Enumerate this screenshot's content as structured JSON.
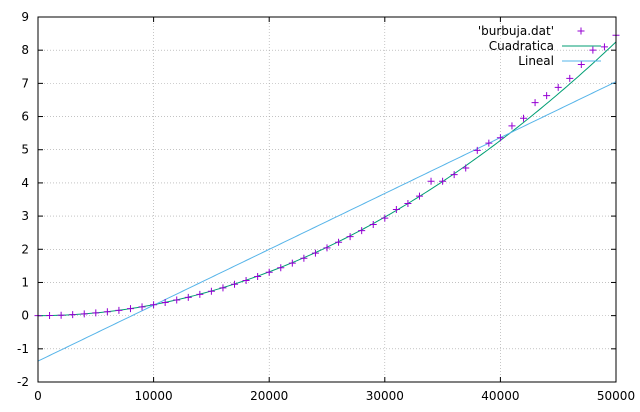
{
  "chart_data": {
    "type": "line",
    "title": "",
    "xlabel": "",
    "ylabel": "",
    "xlim": [
      0,
      50000
    ],
    "ylim": [
      -2,
      9
    ],
    "xticks": [
      0,
      10000,
      20000,
      30000,
      40000,
      50000
    ],
    "yticks": [
      -2,
      -1,
      0,
      1,
      2,
      3,
      4,
      5,
      6,
      7,
      8,
      9
    ],
    "grid": true,
    "legend_position": "top-right",
    "series": [
      {
        "name": "'burbuja.dat'",
        "style": "points",
        "marker": "plus",
        "color": "#9400d3",
        "points": [
          [
            0,
            0.0
          ],
          [
            1000,
            0.003
          ],
          [
            2000,
            0.013
          ],
          [
            3000,
            0.03
          ],
          [
            4000,
            0.052
          ],
          [
            5000,
            0.082
          ],
          [
            6000,
            0.118
          ],
          [
            7000,
            0.16
          ],
          [
            8000,
            0.21
          ],
          [
            9000,
            0.265
          ],
          [
            10000,
            0.327
          ],
          [
            11000,
            0.395
          ],
          [
            12000,
            0.47
          ],
          [
            13000,
            0.552
          ],
          [
            14000,
            0.64
          ],
          [
            15000,
            0.735
          ],
          [
            16000,
            0.837
          ],
          [
            17000,
            0.945
          ],
          [
            18000,
            1.06
          ],
          [
            19000,
            1.18
          ],
          [
            20000,
            1.308
          ],
          [
            21000,
            1.442
          ],
          [
            22000,
            1.583
          ],
          [
            23000,
            1.73
          ],
          [
            24000,
            1.883
          ],
          [
            25000,
            2.043
          ],
          [
            26000,
            2.21
          ],
          [
            27000,
            2.383
          ],
          [
            28000,
            2.562
          ],
          [
            29000,
            2.748
          ],
          [
            30000,
            2.94
          ],
          [
            31000,
            3.2
          ],
          [
            32000,
            3.38
          ],
          [
            33000,
            3.6
          ],
          [
            34000,
            4.05
          ],
          [
            35000,
            4.05
          ],
          [
            36000,
            4.25
          ],
          [
            37000,
            4.45
          ],
          [
            38000,
            4.98
          ],
          [
            39000,
            5.2
          ],
          [
            40000,
            5.36
          ],
          [
            41000,
            5.72
          ],
          [
            42000,
            5.95
          ],
          [
            43000,
            6.42
          ],
          [
            44000,
            6.63
          ],
          [
            45000,
            6.88
          ],
          [
            46000,
            7.15
          ],
          [
            47000,
            7.57
          ],
          [
            48000,
            8.0
          ],
          [
            49000,
            8.1
          ],
          [
            50000,
            8.45
          ]
        ]
      },
      {
        "name": "Cuadratica",
        "style": "line",
        "color": "#009e73",
        "function": "quadratic",
        "coefficients": [
          0.0,
          0.0,
          3.3e-09
        ]
      },
      {
        "name": "Lineal",
        "style": "line",
        "color": "#56b4e9",
        "function": "linear",
        "coefficients": [
          -1.37,
          0.0001684
        ]
      }
    ]
  }
}
